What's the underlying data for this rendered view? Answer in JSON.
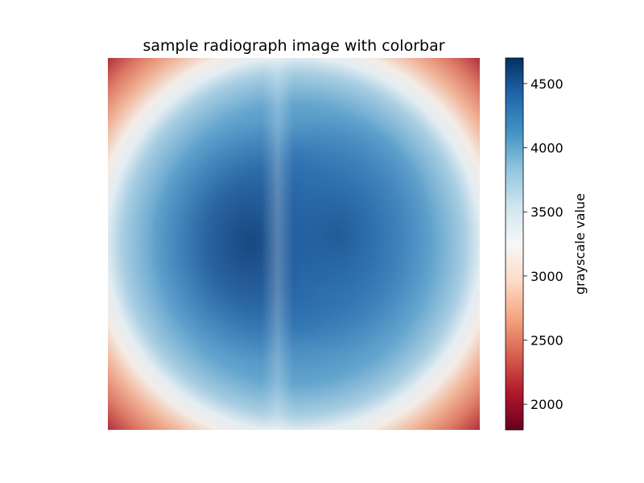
{
  "chart_data": {
    "type": "heatmap",
    "title": "sample radiograph image with colorbar",
    "xlabel": "",
    "ylabel": "",
    "axes_visible": false,
    "colormap": "RdBu",
    "colorbar": {
      "label": "grayscale value",
      "range": [
        1800,
        4700
      ],
      "ticks": [
        2000,
        2500,
        3000,
        3500,
        4000,
        4500
      ],
      "tick_labels": [
        "2000",
        "2500",
        "3000",
        "3500",
        "4000",
        "4500"
      ]
    },
    "image_description_values": {
      "corner_value": 1900,
      "edge_value": 3300,
      "center_value": 4600
    }
  },
  "colors": {
    "low": "#67001f",
    "mid": "#f7f7f7",
    "high": "#053061"
  }
}
